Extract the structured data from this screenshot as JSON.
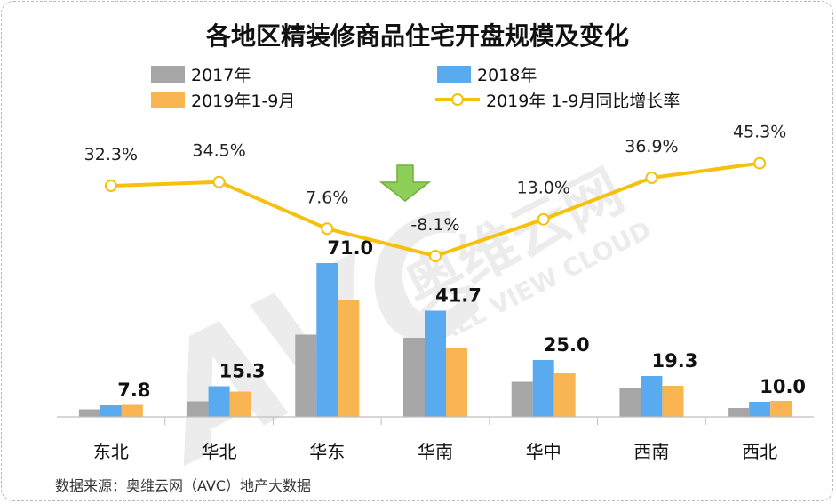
{
  "title": "各地区精装修商品住宅开盘规模及变化",
  "source": "数据来源：奥维云网（AVC）地产大数据",
  "watermark": {
    "cn": "奥维云网",
    "en": "ALL VIEW CLOUD",
    "mark": "AVC"
  },
  "colors": {
    "s2017": "#a6a6a6",
    "s2018": "#5aaaf0",
    "s2019": "#f8b552",
    "line": "#f6c10e",
    "arrow": "#8ecf5a"
  },
  "chart_data": {
    "type": "bar",
    "title": "各地区精装修商品住宅开盘规模及变化",
    "categories": [
      "东北",
      "华北",
      "华东",
      "华南",
      "华中",
      "西南",
      "西北"
    ],
    "series": [
      {
        "name": "2017年",
        "values": [
          1.7,
          3.5,
          18.5,
          17.8,
          7.9,
          6.4,
          2.0
        ]
      },
      {
        "name": "2018年",
        "values": [
          2.6,
          6.9,
          34.6,
          23.9,
          12.8,
          9.2,
          3.4
        ]
      },
      {
        "name": "2019年1-9月",
        "values": [
          2.7,
          5.7,
          26.3,
          15.4,
          9.8,
          7.0,
          3.6
        ]
      }
    ],
    "bar_labels": [
      "7.8",
      "15.3",
      "71.0",
      "41.7",
      "25.0",
      "19.3",
      "10.0"
    ],
    "line_series": {
      "name": "2019年 1-9月同比增长率",
      "values": [
        32.3,
        34.5,
        7.6,
        -8.1,
        13.0,
        36.9,
        45.3
      ],
      "labels": [
        "32.3%",
        "34.5%",
        "7.6%",
        "-8.1%",
        "13.0%",
        "36.9%",
        "45.3%"
      ]
    },
    "legend": [
      "2017年",
      "2018年",
      "2019年1-9月",
      "2019年 1-9月同比增长率"
    ],
    "legend_position": "top",
    "grid": false
  }
}
